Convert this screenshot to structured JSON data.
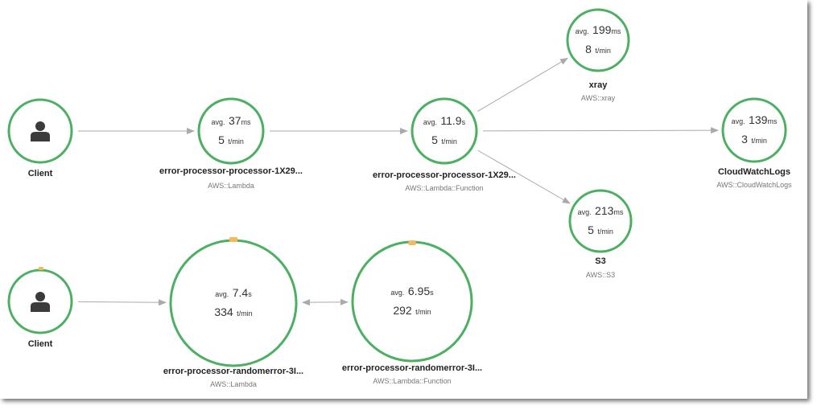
{
  "colors": {
    "ok": "#4caf62",
    "fault": "#f5b95a",
    "edge": "#aaaaaa",
    "icon": "#3b3b3b"
  },
  "nodes": [
    {
      "id": "client1",
      "kind": "client",
      "name": "Client"
    },
    {
      "id": "lambda1",
      "kind": "service",
      "name": "error-processor-processor-1X29...",
      "type": "AWS::Lambda",
      "avg_value": "37",
      "avg_unit": "ms",
      "tpm": "5"
    },
    {
      "id": "func1",
      "kind": "service",
      "name": "error-processor-processor-1X29...",
      "type": "AWS::Lambda::Function",
      "avg_value": "11.9",
      "avg_unit": "s",
      "tpm": "5"
    },
    {
      "id": "xray",
      "kind": "service",
      "name": "xray",
      "type": "AWS::xray",
      "avg_value": "199",
      "avg_unit": "ms",
      "tpm": "8"
    },
    {
      "id": "cwlogs",
      "kind": "service",
      "name": "CloudWatchLogs",
      "type": "AWS::CloudWatchLogs",
      "avg_value": "139",
      "avg_unit": "ms",
      "tpm": "3"
    },
    {
      "id": "s3",
      "kind": "service",
      "name": "S3",
      "type": "AWS::S3",
      "avg_value": "213",
      "avg_unit": "ms",
      "tpm": "5"
    },
    {
      "id": "client2",
      "kind": "client",
      "name": "Client"
    },
    {
      "id": "lambda2",
      "kind": "service",
      "name": "error-processor-randomerror-3I...",
      "type": "AWS::Lambda",
      "avg_value": "7.4",
      "avg_unit": "s",
      "tpm": "334"
    },
    {
      "id": "func2",
      "kind": "service",
      "name": "error-processor-randomerror-3I...",
      "type": "AWS::Lambda::Function",
      "avg_value": "6.95",
      "avg_unit": "s",
      "tpm": "292"
    }
  ],
  "edges": [
    {
      "from": "client1",
      "to": "lambda1"
    },
    {
      "from": "lambda1",
      "to": "func1"
    },
    {
      "from": "func1",
      "to": "xray"
    },
    {
      "from": "func1",
      "to": "cwlogs"
    },
    {
      "from": "func1",
      "to": "s3"
    },
    {
      "from": "client2",
      "to": "lambda2"
    },
    {
      "from": "lambda2",
      "to": "func2",
      "bidirectional": true
    }
  ],
  "labels": {
    "avg": "avg.",
    "tpm_unit": "t/min"
  }
}
